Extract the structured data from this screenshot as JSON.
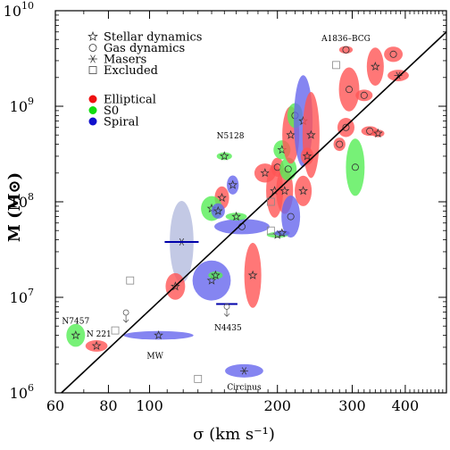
{
  "chart_data": {
    "type": "scatter",
    "title": "",
    "xlabel": "σ (km s⁻¹)",
    "ylabel": "M (M⊙)",
    "x_scale": "log",
    "y_scale": "log",
    "xlim": [
      60,
      500
    ],
    "ylim": [
      1000000,
      10000000000
    ],
    "x_ticks": [
      {
        "value": 60,
        "label": "60"
      },
      {
        "value": 80,
        "label": "80"
      },
      {
        "value": 100,
        "label": "100"
      },
      {
        "value": 200,
        "label": "200"
      },
      {
        "value": 300,
        "label": "300"
      },
      {
        "value": 400,
        "label": "400"
      }
    ],
    "y_ticks": [
      {
        "value": 1000000,
        "base": "10",
        "exp": "6"
      },
      {
        "value": 10000000,
        "base": "10",
        "exp": "7"
      },
      {
        "value": 100000000,
        "base": "10",
        "exp": "8"
      },
      {
        "value": 1000000000,
        "base": "10",
        "exp": "9"
      },
      {
        "value": 10000000000,
        "base": "10",
        "exp": "10"
      }
    ],
    "legend": {
      "position": "top-left",
      "methods": [
        {
          "symbol": "star",
          "label": "Stellar dynamics"
        },
        {
          "symbol": "circle",
          "label": "Gas dynamics"
        },
        {
          "symbol": "asterisk",
          "label": "Masers"
        },
        {
          "symbol": "square",
          "label": "Excluded"
        }
      ],
      "types": [
        {
          "color": "#ee1111",
          "label": "Elliptical"
        },
        {
          "color": "#11dd11",
          "label": "S0"
        },
        {
          "color": "#1111cc",
          "label": "Spiral"
        }
      ]
    },
    "colors": {
      "Elliptical": "#ff5555",
      "S0": "#55ee55",
      "Spiral": "#6666ee",
      "Masers-highlight": "#b8c0e0"
    },
    "fit_line": {
      "x": [
        62,
        500
      ],
      "y": [
        1000000,
        6000000000
      ]
    },
    "annotations": [
      {
        "text": "A1836–BCG",
        "x": 290,
        "y": 4800000000
      },
      {
        "text": "N5128",
        "x": 155,
        "y": 460000000
      },
      {
        "text": "N7457",
        "x": 67,
        "y": 5300000
      },
      {
        "text": "N 221",
        "x": 76,
        "y": 3900000
      },
      {
        "text": "MW",
        "x": 103,
        "y": 2300000
      },
      {
        "text": "N4435",
        "x": 153,
        "y": 4500000
      },
      {
        "text": "Circinus",
        "x": 167,
        "y": 1080000
      }
    ],
    "galaxies": [
      {
        "type": "Elliptical",
        "method": "star",
        "x": 75,
        "y": 3100000,
        "rx": 0.026,
        "ry": 0.06
      },
      {
        "type": "S0",
        "method": "star",
        "x": 67,
        "y": 4000000,
        "rx": 0.022,
        "ry": 0.12
      },
      {
        "type": "Spiral",
        "method": "star",
        "x": 105,
        "y": 4000000,
        "rx": 0.082,
        "ry": 0.045
      },
      {
        "type": "Spiral",
        "method": "asterisk",
        "x": 167,
        "y": 1700000,
        "rx": 0.045,
        "ry": 0.07
      },
      {
        "type": "Spiral",
        "method": "asterisk",
        "x": 119,
        "y": 38000000,
        "rx": 0.028,
        "ry": 0.43,
        "highlight": true
      },
      {
        "type": "Spiral",
        "method": "star",
        "x": 140,
        "y": 15000000,
        "rx": 0.045,
        "ry": 0.21
      },
      {
        "type": "Elliptical",
        "method": "star",
        "x": 115,
        "y": 13000000,
        "rx": 0.023,
        "ry": 0.14
      },
      {
        "type": "S0",
        "method": "star",
        "x": 143,
        "y": 17000000,
        "rx": 0.017,
        "ry": 0.04
      },
      {
        "type": "S0",
        "method": "star",
        "x": 150,
        "y": 300000000,
        "rx": 0.018,
        "ry": 0.04
      },
      {
        "type": "Spiral",
        "method": "star",
        "x": 157,
        "y": 150000000,
        "rx": 0.014,
        "ry": 0.1
      },
      {
        "type": "Elliptical",
        "method": "star",
        "x": 148,
        "y": 110000000,
        "rx": 0.017,
        "ry": 0.12
      },
      {
        "type": "S0",
        "method": "star",
        "x": 140,
        "y": 85000000,
        "rx": 0.025,
        "ry": 0.13
      },
      {
        "type": "Spiral",
        "method": "star",
        "x": 145,
        "y": 80000000,
        "rx": 0.016,
        "ry": 0.08
      },
      {
        "type": "Spiral",
        "method": "circle",
        "x": 165,
        "y": 55000000,
        "rx": 0.065,
        "ry": 0.08
      },
      {
        "type": "Elliptical",
        "method": "star",
        "x": 175,
        "y": 17000000,
        "rx": 0.02,
        "ry": 0.34
      },
      {
        "type": "S0",
        "method": "star",
        "x": 160,
        "y": 70000000,
        "rx": 0.025,
        "ry": 0.04
      },
      {
        "type": "Elliptical",
        "method": "star",
        "x": 187,
        "y": 200000000,
        "rx": 0.025,
        "ry": 0.1
      },
      {
        "type": "Elliptical",
        "method": "star",
        "x": 197,
        "y": 130000000,
        "rx": 0.02,
        "ry": 0.28
      },
      {
        "type": "Elliptical",
        "method": "circle",
        "x": 200,
        "y": 230000000,
        "rx": 0.015,
        "ry": 0.1
      },
      {
        "type": "S0",
        "method": "star",
        "x": 205,
        "y": 350000000,
        "rx": 0.02,
        "ry": 0.1
      },
      {
        "type": "Elliptical",
        "method": "star",
        "x": 208,
        "y": 130000000,
        "rx": 0.02,
        "ry": 0.24
      },
      {
        "type": "S0",
        "method": "circle",
        "x": 212,
        "y": 220000000,
        "rx": 0.02,
        "ry": 0.12
      },
      {
        "type": "Elliptical",
        "method": "star",
        "x": 215,
        "y": 500000000,
        "rx": 0.02,
        "ry": 0.3
      },
      {
        "type": "S0",
        "method": "circle",
        "x": 220,
        "y": 800000000,
        "rx": 0.018,
        "ry": 0.13
      },
      {
        "type": "Spiral",
        "method": "star",
        "x": 230,
        "y": 700000000,
        "rx": 0.022,
        "ry": 0.48
      },
      {
        "type": "Elliptical",
        "method": "star",
        "x": 240,
        "y": 500000000,
        "rx": 0.02,
        "ry": 0.45
      },
      {
        "type": "Spiral",
        "method": "circle",
        "x": 215,
        "y": 70000000,
        "rx": 0.022,
        "ry": 0.22
      },
      {
        "type": "Elliptical",
        "method": "star",
        "x": 230,
        "y": 130000000,
        "rx": 0.02,
        "ry": 0.16
      },
      {
        "type": "S0",
        "method": "star",
        "x": 200,
        "y": 45000000,
        "rx": 0.025,
        "ry": 0.03
      },
      {
        "type": "Spiral",
        "method": "star",
        "x": 205,
        "y": 47000000,
        "rx": 0.018,
        "ry": 0.03
      },
      {
        "type": "Elliptical",
        "method": "star",
        "x": 235,
        "y": 300000000,
        "rx": 0.015,
        "ry": 0.09
      },
      {
        "type": "Elliptical",
        "method": "circle",
        "x": 280,
        "y": 400000000,
        "rx": 0.014,
        "ry": 0.07
      },
      {
        "type": "Elliptical",
        "method": "circle",
        "x": 290,
        "y": 600000000,
        "rx": 0.02,
        "ry": 0.1
      },
      {
        "type": "Elliptical",
        "method": "circle",
        "x": 295,
        "y": 1500000000,
        "rx": 0.024,
        "ry": 0.23
      },
      {
        "type": "S0",
        "method": "circle",
        "x": 305,
        "y": 230000000,
        "rx": 0.022,
        "ry": 0.3
      },
      {
        "type": "Elliptical",
        "method": "circle",
        "x": 320,
        "y": 1300000000,
        "rx": 0.02,
        "ry": 0.06
      },
      {
        "type": "Elliptical",
        "method": "circle",
        "x": 330,
        "y": 550000000,
        "rx": 0.02,
        "ry": 0.05
      },
      {
        "type": "Elliptical",
        "method": "star",
        "x": 340,
        "y": 2600000000,
        "rx": 0.02,
        "ry": 0.2
      },
      {
        "type": "Elliptical",
        "method": "star",
        "x": 345,
        "y": 520000000,
        "rx": 0.015,
        "ry": 0.04
      },
      {
        "type": "Elliptical",
        "method": "circle",
        "x": 375,
        "y": 3500000000,
        "rx": 0.022,
        "ry": 0.08
      },
      {
        "type": "Elliptical",
        "method": "asterisk",
        "x": 385,
        "y": 2100000000,
        "rx": 0.025,
        "ry": 0.06
      },
      {
        "type": "Elliptical",
        "method": "circle",
        "x": 290,
        "y": 3900000000,
        "rx": 0.016,
        "ry": 0.04
      }
    ],
    "maser_bars": [
      {
        "x": 119,
        "y": 38000000,
        "half_width": 0.04
      },
      {
        "x": 152,
        "y": 8500000,
        "half_width": 0.025
      }
    ],
    "excluded": [
      {
        "x": 90,
        "y": 15000000
      },
      {
        "x": 83,
        "y": 4500000
      },
      {
        "x": 130,
        "y": 1400000
      },
      {
        "x": 193,
        "y": 100000000
      },
      {
        "x": 193,
        "y": 50000000
      },
      {
        "x": 275,
        "y": 2700000000
      }
    ],
    "upper_limits": [
      {
        "x": 88,
        "y": 6500000
      },
      {
        "x": 152,
        "y": 7500000
      }
    ]
  }
}
